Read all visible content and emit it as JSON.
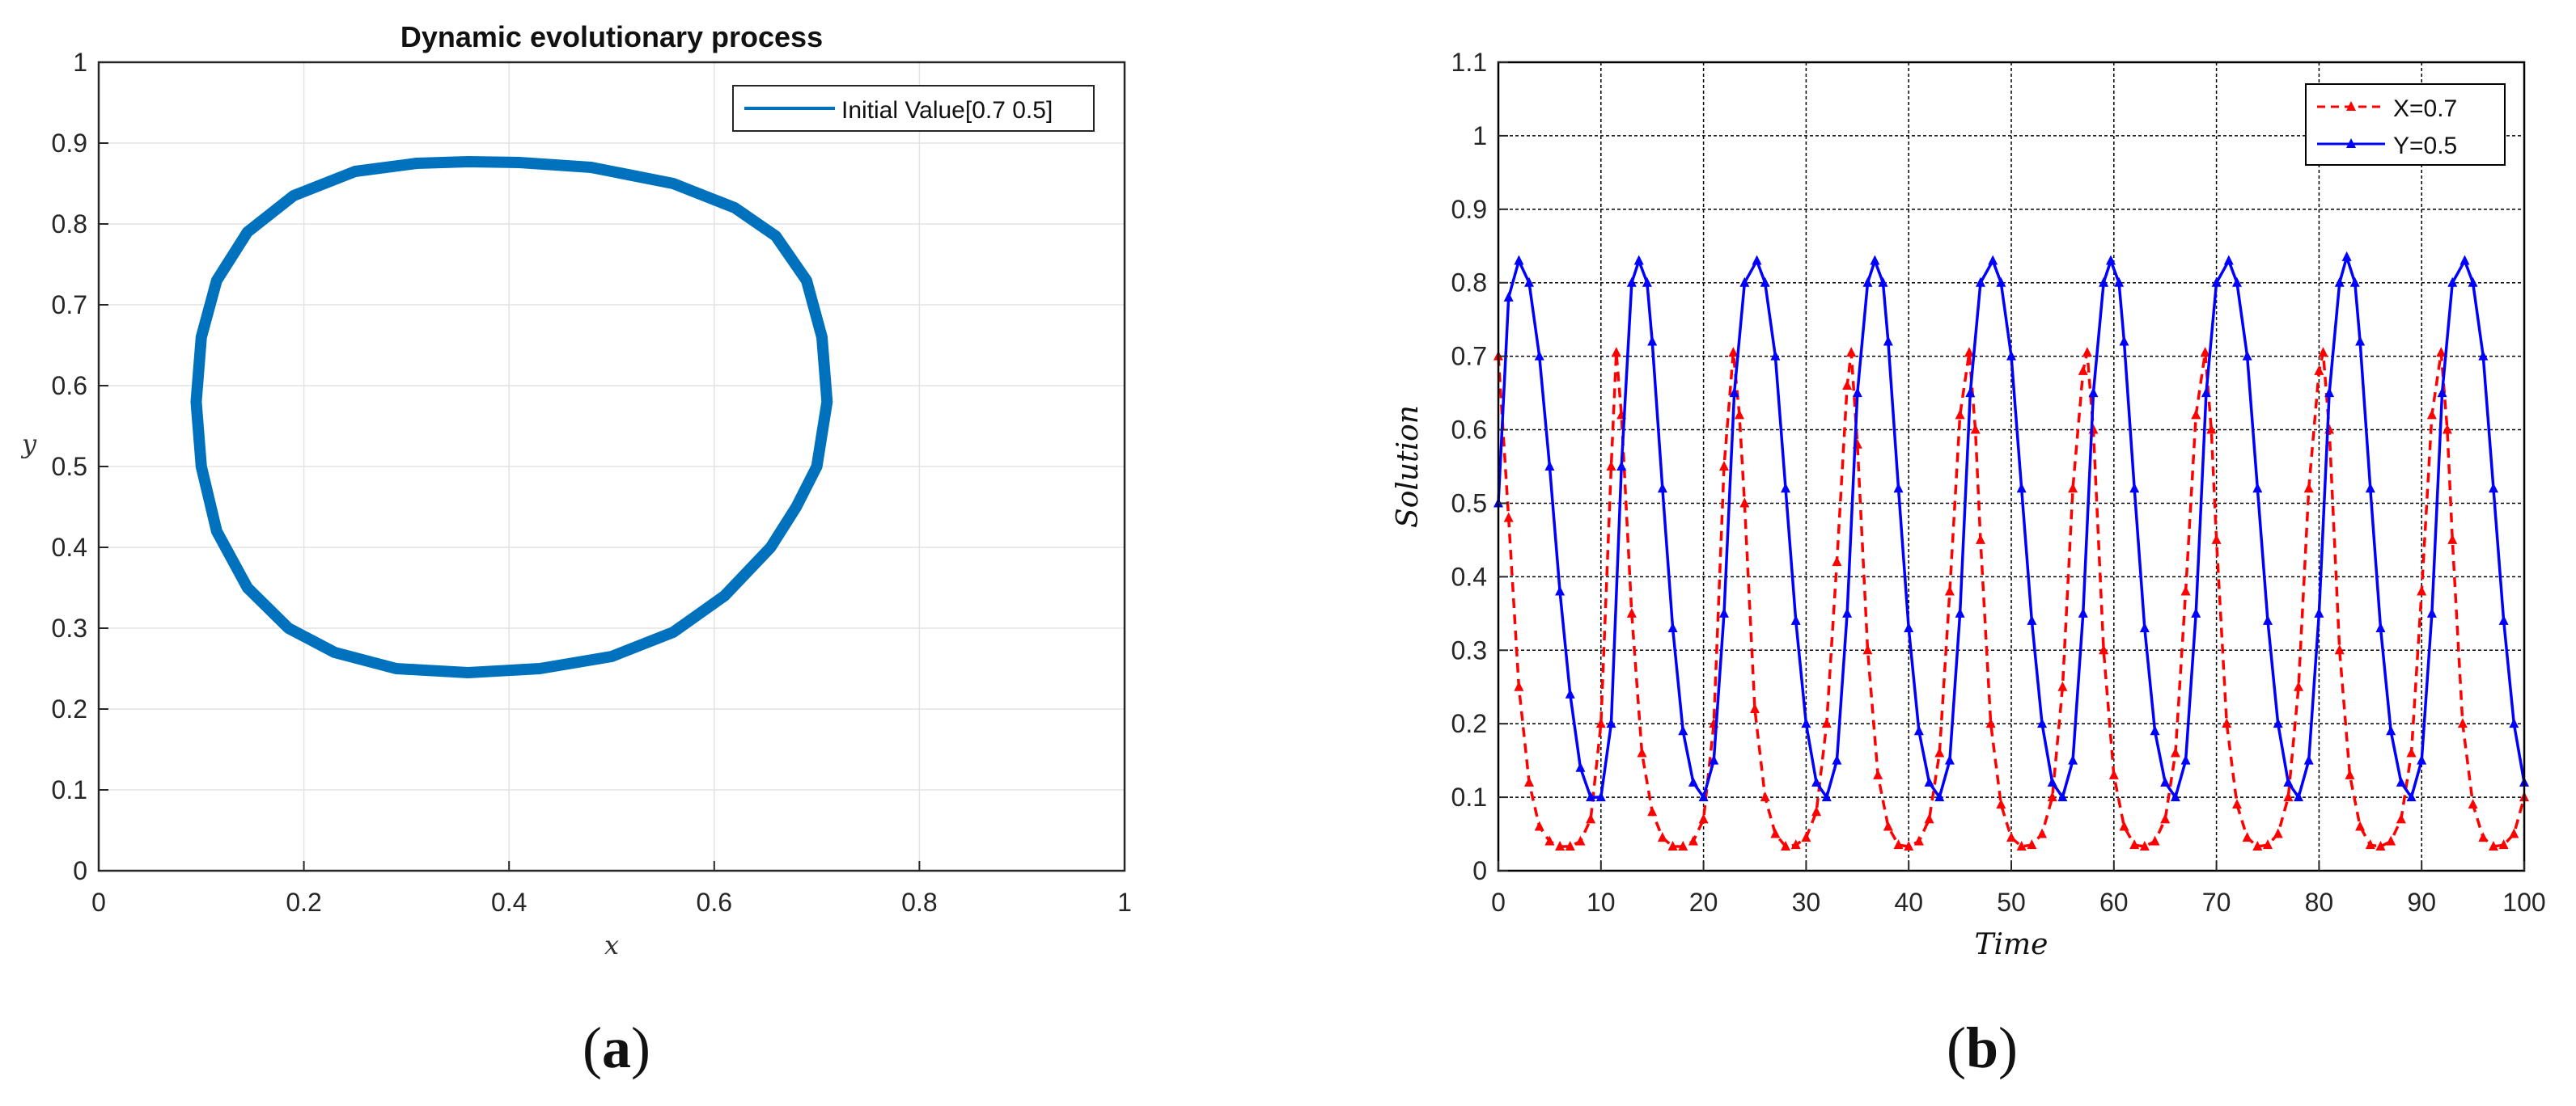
{
  "chart_data": [
    {
      "type": "line",
      "panel_label": "a",
      "title": "Dynamic evolutionary process",
      "xlabel": "x",
      "ylabel": "y",
      "xlim": [
        0,
        1
      ],
      "ylim": [
        0,
        1
      ],
      "xticks": [
        "0",
        "0.2",
        "0.4",
        "0.6",
        "0.8",
        "1"
      ],
      "yticks": [
        "0",
        "0.1",
        "0.2",
        "0.3",
        "0.4",
        "0.5",
        "0.6",
        "0.7",
        "0.8",
        "0.9",
        "1"
      ],
      "grid": true,
      "legend_position": "top-right",
      "series": [
        {
          "name": "Initial Value[0.7 0.5]",
          "color": "#0072bd",
          "x": [
            0.7,
            0.71,
            0.705,
            0.69,
            0.66,
            0.62,
            0.56,
            0.48,
            0.41,
            0.36,
            0.31,
            0.25,
            0.19,
            0.145,
            0.115,
            0.1,
            0.095,
            0.1,
            0.115,
            0.145,
            0.185,
            0.23,
            0.29,
            0.36,
            0.43,
            0.5,
            0.56,
            0.61,
            0.655,
            0.68,
            0.7
          ],
          "y": [
            0.5,
            0.58,
            0.66,
            0.73,
            0.785,
            0.82,
            0.85,
            0.87,
            0.876,
            0.877,
            0.875,
            0.865,
            0.835,
            0.79,
            0.73,
            0.66,
            0.58,
            0.5,
            0.42,
            0.35,
            0.3,
            0.27,
            0.25,
            0.245,
            0.25,
            0.265,
            0.295,
            0.34,
            0.4,
            0.45,
            0.5
          ]
        }
      ]
    },
    {
      "type": "line",
      "panel_label": "b",
      "title": "",
      "xlabel": "Time",
      "ylabel": "Solution",
      "xlim": [
        0,
        100
      ],
      "ylim": [
        0,
        1.1
      ],
      "xticks": [
        "0",
        "10",
        "20",
        "30",
        "40",
        "50",
        "60",
        "70",
        "80",
        "90",
        "100"
      ],
      "yticks": [
        "0",
        "0.1",
        "0.2",
        "0.3",
        "0.4",
        "0.5",
        "0.6",
        "0.7",
        "0.8",
        "0.9",
        "1",
        "1.1"
      ],
      "grid": true,
      "legend_position": "top-right",
      "series": [
        {
          "name": "X=0.7",
          "color": "#ff0000",
          "style": "dashed",
          "marker": "triangle",
          "x": [
            0,
            1,
            2,
            3,
            4,
            5,
            6,
            7,
            8,
            9,
            10,
            11,
            11.5,
            12,
            13,
            14,
            15,
            16,
            17,
            18,
            19,
            20,
            21,
            22,
            22.9,
            23.5,
            24,
            25,
            26,
            27,
            28,
            29,
            30,
            31,
            32,
            33,
            34,
            34.4,
            35,
            36,
            37,
            38,
            39,
            40,
            41,
            42,
            43,
            44,
            45,
            45.9,
            46.5,
            47,
            48,
            49,
            50,
            51,
            52,
            53,
            54,
            55,
            56,
            57,
            57.4,
            58,
            59,
            60,
            61,
            62,
            63,
            64,
            65,
            66,
            67,
            68,
            68.9,
            69.5,
            70,
            71,
            72,
            73,
            74,
            75,
            76,
            77,
            78,
            79,
            80,
            80.4,
            81,
            82,
            83,
            84,
            85,
            86,
            87,
            88,
            89,
            90,
            91,
            91.9,
            92.5,
            93,
            94,
            95,
            96,
            97,
            98,
            99,
            100
          ],
          "y": [
            0.7,
            0.48,
            0.25,
            0.12,
            0.06,
            0.04,
            0.033,
            0.033,
            0.04,
            0.07,
            0.2,
            0.55,
            0.705,
            0.62,
            0.35,
            0.16,
            0.08,
            0.045,
            0.033,
            0.033,
            0.04,
            0.07,
            0.2,
            0.55,
            0.705,
            0.62,
            0.5,
            0.22,
            0.1,
            0.05,
            0.033,
            0.035,
            0.045,
            0.08,
            0.2,
            0.42,
            0.66,
            0.705,
            0.58,
            0.3,
            0.13,
            0.06,
            0.035,
            0.033,
            0.04,
            0.07,
            0.16,
            0.38,
            0.62,
            0.705,
            0.6,
            0.45,
            0.2,
            0.09,
            0.045,
            0.033,
            0.035,
            0.05,
            0.1,
            0.25,
            0.52,
            0.68,
            0.705,
            0.6,
            0.3,
            0.13,
            0.06,
            0.035,
            0.033,
            0.04,
            0.07,
            0.16,
            0.38,
            0.62,
            0.705,
            0.6,
            0.45,
            0.2,
            0.09,
            0.045,
            0.033,
            0.035,
            0.05,
            0.1,
            0.25,
            0.52,
            0.68,
            0.705,
            0.6,
            0.3,
            0.13,
            0.06,
            0.035,
            0.033,
            0.04,
            0.07,
            0.16,
            0.38,
            0.62,
            0.705,
            0.6,
            0.45,
            0.2,
            0.09,
            0.045,
            0.033,
            0.035,
            0.05,
            0.1
          ]
        },
        {
          "name": "Y=0.5",
          "color": "#0000ff",
          "style": "solid",
          "marker": "triangle",
          "x": [
            0,
            1,
            2,
            3,
            4,
            5,
            6,
            7,
            8,
            9,
            10,
            11,
            12,
            13,
            13.7,
            14.5,
            15,
            16,
            17,
            18,
            19,
            20,
            21,
            22,
            23,
            24,
            25.2,
            26,
            27,
            28,
            29,
            30,
            31,
            32,
            33,
            34,
            35,
            36,
            36.7,
            37.5,
            38,
            39,
            40,
            41,
            42,
            43,
            44,
            45,
            46,
            47,
            48.2,
            49,
            50,
            51,
            52,
            53,
            54,
            55,
            56,
            57,
            58,
            59,
            59.7,
            60.5,
            61,
            62,
            63,
            64,
            65,
            66,
            67,
            68,
            69,
            70,
            71.2,
            72,
            73,
            74,
            75,
            76,
            77,
            78,
            79,
            80,
            81,
            82,
            82.7,
            83.5,
            84,
            85,
            86,
            87,
            88,
            89,
            90,
            91,
            92,
            93,
            94.2,
            95,
            96,
            97,
            98,
            99,
            100
          ],
          "y": [
            0.5,
            0.78,
            0.83,
            0.8,
            0.7,
            0.55,
            0.38,
            0.24,
            0.14,
            0.1,
            0.1,
            0.2,
            0.55,
            0.8,
            0.83,
            0.8,
            0.72,
            0.52,
            0.33,
            0.19,
            0.12,
            0.1,
            0.15,
            0.35,
            0.65,
            0.8,
            0.83,
            0.8,
            0.7,
            0.52,
            0.34,
            0.2,
            0.12,
            0.1,
            0.15,
            0.35,
            0.65,
            0.8,
            0.83,
            0.8,
            0.72,
            0.52,
            0.33,
            0.19,
            0.12,
            0.1,
            0.15,
            0.35,
            0.65,
            0.8,
            0.83,
            0.8,
            0.7,
            0.52,
            0.34,
            0.2,
            0.12,
            0.1,
            0.15,
            0.35,
            0.65,
            0.8,
            0.83,
            0.8,
            0.72,
            0.52,
            0.33,
            0.19,
            0.12,
            0.1,
            0.15,
            0.35,
            0.65,
            0.8,
            0.83,
            0.8,
            0.7,
            0.52,
            0.34,
            0.2,
            0.12,
            0.1,
            0.15,
            0.35,
            0.65,
            0.8,
            0.835,
            0.8,
            0.72,
            0.52,
            0.33,
            0.19,
            0.12,
            0.1,
            0.15,
            0.35,
            0.65,
            0.8,
            0.83,
            0.8,
            0.7,
            0.52,
            0.34,
            0.2,
            0.12
          ]
        }
      ]
    }
  ]
}
